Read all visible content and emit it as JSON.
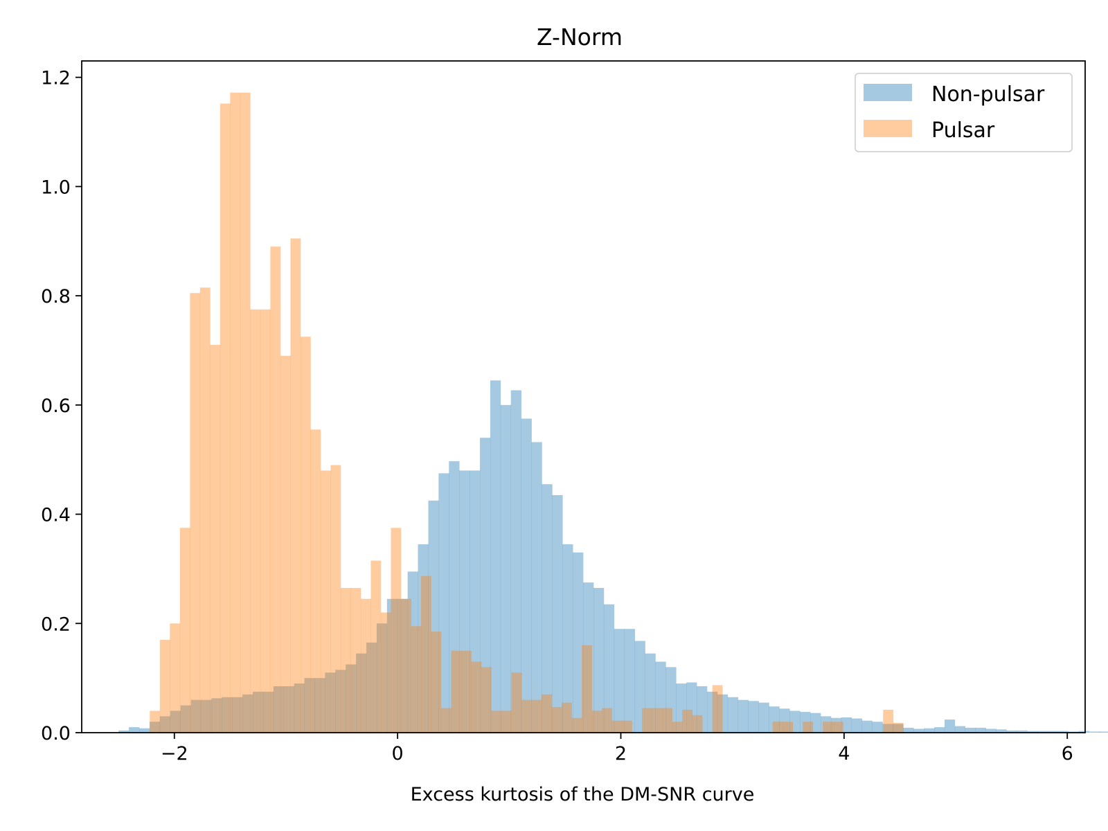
{
  "chart_data": {
    "type": "histogram",
    "title": "Z-Norm",
    "xlabel": "Excess kurtosis of the DM-SNR curve",
    "ylabel": "",
    "xlim": [
      -2.83,
      6.16
    ],
    "ylim": [
      0,
      1.23
    ],
    "xticks": [
      -2,
      0,
      2,
      4,
      6
    ],
    "xtick_labels": [
      "−2",
      "0",
      "2",
      "4",
      "6"
    ],
    "yticks": [
      0,
      0.2,
      0.4,
      0.6,
      0.8,
      1.0,
      1.2
    ],
    "ytick_labels": [
      "0.0",
      "0.2",
      "0.4",
      "0.6",
      "0.8",
      "1.0",
      "1.2"
    ],
    "legend": {
      "position": "top-right"
    },
    "series": [
      {
        "name": "Non-pulsar",
        "color": "#1f77b4",
        "opacity": 0.4,
        "bin_start": -2.5,
        "bin_width": 0.0925,
        "values": [
          0.004,
          0.01,
          0.008,
          0.02,
          0.03,
          0.04,
          0.05,
          0.06,
          0.06,
          0.063,
          0.065,
          0.065,
          0.07,
          0.075,
          0.075,
          0.085,
          0.085,
          0.09,
          0.1,
          0.1,
          0.11,
          0.115,
          0.125,
          0.145,
          0.165,
          0.2,
          0.245,
          0.245,
          0.295,
          0.345,
          0.425,
          0.475,
          0.497,
          0.48,
          0.48,
          0.54,
          0.645,
          0.6,
          0.627,
          0.575,
          0.532,
          0.455,
          0.435,
          0.345,
          0.33,
          0.275,
          0.265,
          0.235,
          0.19,
          0.19,
          0.168,
          0.145,
          0.13,
          0.12,
          0.09,
          0.092,
          0.085,
          0.075,
          0.07,
          0.065,
          0.06,
          0.058,
          0.055,
          0.048,
          0.044,
          0.04,
          0.038,
          0.036,
          0.03,
          0.027,
          0.028,
          0.026,
          0.022,
          0.02,
          0.016,
          0.016,
          0.009,
          0.007,
          0.008,
          0.01,
          0.024,
          0.012,
          0.009,
          0.009,
          0.007,
          0.006,
          0.004,
          0.004,
          0.003,
          0.003,
          0.003,
          0.003,
          0.002,
          0.003,
          0.002,
          0.002
        ]
      },
      {
        "name": "Pulsar",
        "color": "#ff7f0e",
        "opacity": 0.4,
        "bin_start": -2.22,
        "bin_width": 0.09,
        "values": [
          0.04,
          0.17,
          0.2,
          0.375,
          0.805,
          0.815,
          0.71,
          1.152,
          1.172,
          1.172,
          0.775,
          0.775,
          0.89,
          0.69,
          0.905,
          0.725,
          0.555,
          0.48,
          0.49,
          0.265,
          0.265,
          0.245,
          0.315,
          0.22,
          0.375,
          0.245,
          0.195,
          0.287,
          0.185,
          0.045,
          0.15,
          0.15,
          0.13,
          0.12,
          0.04,
          0.04,
          0.11,
          0.06,
          0.06,
          0.07,
          0.047,
          0.055,
          0.027,
          0.16,
          0.04,
          0.045,
          0.022,
          0.022,
          0,
          0.045,
          0.045,
          0.045,
          0.02,
          0.042,
          0.032,
          0,
          0.087,
          0,
          0,
          0,
          0,
          0,
          0.02,
          0.02,
          0,
          0.02,
          0,
          0.02,
          0.02,
          0,
          0,
          0,
          0,
          0.042,
          0.018
        ]
      }
    ]
  }
}
